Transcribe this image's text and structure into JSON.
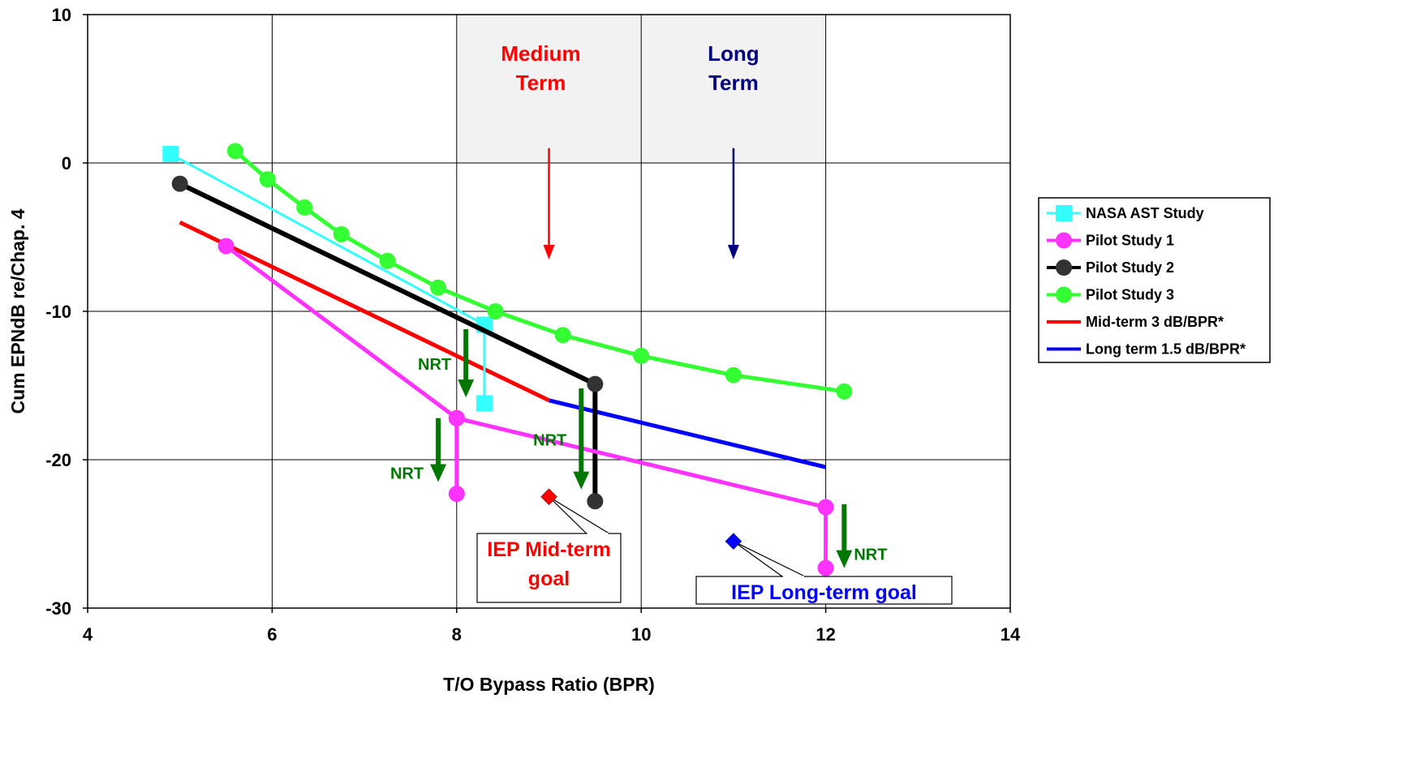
{
  "chart_data": {
    "type": "line",
    "title": "",
    "xlabel": "T/O Bypass Ratio (BPR)",
    "ylabel": "Cum EPNdB re/Chap. 4",
    "xlim": [
      4,
      14
    ],
    "ylim": [
      -30,
      10
    ],
    "x_ticks": [
      "4",
      "6",
      "8",
      "10",
      "12",
      "14"
    ],
    "y_ticks": [
      "10",
      "0",
      "-10",
      "-20",
      "-30"
    ],
    "grid": true,
    "legend_position": "right",
    "shaded_regions": [
      {
        "x_start": 8,
        "x_end": 10,
        "y_start": 0,
        "y_end": 10,
        "label": [
          "Medium",
          "Term"
        ],
        "label_color": "#ff0000",
        "arrow_x": 9,
        "arrow_from": 1,
        "arrow_to": -6.5
      },
      {
        "x_start": 10,
        "x_end": 12,
        "y_start": 0,
        "y_end": 10,
        "label": [
          "Long",
          "Term"
        ],
        "label_color": "#000080",
        "arrow_x": 11,
        "arrow_from": 1,
        "arrow_to": -6.5
      }
    ],
    "series": [
      {
        "name": "NASA AST Study",
        "color": "#33ffff",
        "marker": "square",
        "line_width": 3,
        "points": [
          [
            4.9,
            0.6
          ],
          [
            8.3,
            -10.9
          ],
          [
            8.3,
            -16.2
          ]
        ]
      },
      {
        "name": "Pilot Study 1",
        "color": "#ff33ff",
        "marker": "circle",
        "line_width": 5,
        "points": [
          [
            5.5,
            -5.6
          ],
          [
            8.0,
            -17.2
          ],
          [
            8.0,
            -22.3
          ]
        ],
        "extra_segments": [
          {
            "points": [
              [
                8.0,
                -17.2
              ],
              [
                12.0,
                -23.2
              ],
              [
                12.0,
                -27.3
              ]
            ]
          }
        ]
      },
      {
        "name": "Pilot Study 2",
        "color": "#000000",
        "marker": "circle-dark",
        "line_width": 6,
        "points": [
          [
            5.0,
            -1.4
          ],
          [
            9.5,
            -14.9
          ],
          [
            9.5,
            -22.8
          ]
        ]
      },
      {
        "name": "Pilot Study 3",
        "color": "#33ff33",
        "marker": "circle",
        "line_width": 5,
        "points": [
          [
            5.6,
            0.8
          ],
          [
            5.95,
            -1.1
          ],
          [
            6.35,
            -3.0
          ],
          [
            6.75,
            -4.8
          ],
          [
            7.25,
            -6.6
          ],
          [
            7.8,
            -8.4
          ],
          [
            8.42,
            -10.0
          ],
          [
            9.15,
            -11.6
          ],
          [
            10.0,
            -13.0
          ],
          [
            11.0,
            -14.3
          ],
          [
            12.2,
            -15.4
          ]
        ]
      },
      {
        "name": "Mid-term 3 dB/BPR*",
        "color": "#ff0000",
        "marker": "none",
        "line_width": 5,
        "points": [
          [
            5.0,
            -4.0
          ],
          [
            9.0,
            -16.0
          ]
        ]
      },
      {
        "name": "Long term 1.5 dB/BPR*",
        "color": "#0000ff",
        "marker": "none",
        "line_width": 5,
        "points": [
          [
            9.0,
            -16.0
          ],
          [
            12.0,
            -20.5
          ]
        ]
      }
    ],
    "goals": [
      {
        "label": "IEP Mid-term goal",
        "lines": [
          "IEP Mid-term",
          "goal"
        ],
        "x": 9.0,
        "y": -22.5,
        "color": "#ff0000"
      },
      {
        "label": "IEP Long-term goal",
        "lines": [
          "IEP Long-term goal"
        ],
        "x": 11.0,
        "y": -25.5,
        "color": "#0000ff"
      }
    ],
    "nrt_arrows": [
      {
        "label": "NRT",
        "x": 8.1,
        "y_from": -11.2,
        "y_to": -15.8,
        "label_side": "left"
      },
      {
        "label": "NRT",
        "x": 7.8,
        "y_from": -17.2,
        "y_to": -21.5,
        "label_side": "left-below"
      },
      {
        "label": "NRT",
        "x": 9.35,
        "y_from": -15.2,
        "y_to": -22.0,
        "label_side": "left"
      },
      {
        "label": "NRT",
        "x": 12.2,
        "y_from": -23.0,
        "y_to": -27.3,
        "label_side": "right"
      }
    ],
    "nrt_color": "#007700"
  }
}
